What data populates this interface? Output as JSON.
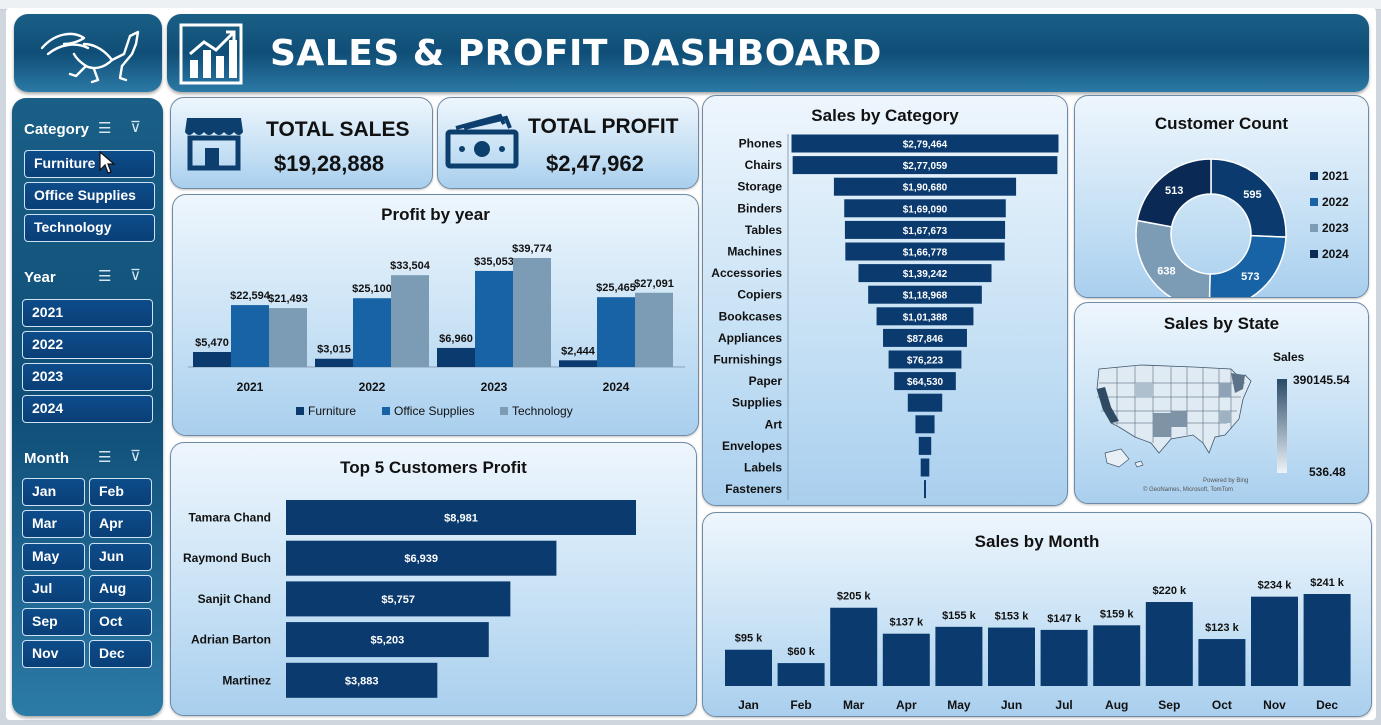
{
  "header": {
    "title": "SALES & PROFIT DASHBOARD",
    "logo_icon": "pegasus-logo",
    "chart_icon": "bar-chart-icon"
  },
  "slicers": {
    "category": {
      "label": "Category",
      "items": [
        "Furniture",
        "Office Supplies",
        "Technology"
      ]
    },
    "year": {
      "label": "Year",
      "items": [
        "2021",
        "2022",
        "2023",
        "2024"
      ]
    },
    "month": {
      "label": "Month",
      "items": [
        "Jan",
        "Feb",
        "Mar",
        "Apr",
        "May",
        "Jun",
        "Jul",
        "Aug",
        "Sep",
        "Oct",
        "Nov",
        "Dec"
      ]
    }
  },
  "kpis": {
    "sales": {
      "label": "TOTAL SALES",
      "value": "$19,28,888",
      "icon": "store-icon"
    },
    "profit": {
      "label": "TOTAL PROFIT",
      "value": "$2,47,962",
      "icon": "cash-icon"
    }
  },
  "colors": {
    "furniture": "#0b3a6e",
    "office": "#1763a5",
    "technology": "#7c9cb6",
    "navy": "#0b3a6e"
  },
  "chart_data": [
    {
      "type": "bar",
      "title": "Profit by year",
      "categories": [
        "2021",
        "2022",
        "2023",
        "2024"
      ],
      "series": [
        {
          "name": "Furniture",
          "values": [
            5470,
            3015,
            6960,
            2444
          ],
          "labels": [
            "$5,470",
            "$3,015",
            "$6,960",
            "$2,444"
          ]
        },
        {
          "name": "Office Supplies",
          "values": [
            22594,
            25100,
            35053,
            25465
          ],
          "labels": [
            "$22,594",
            "$25,100",
            "$35,053",
            "$25,465"
          ]
        },
        {
          "name": "Technology",
          "values": [
            21493,
            33504,
            39774,
            27091
          ],
          "labels": [
            "$21,493",
            "$33,504",
            "$39,774",
            "$27,091"
          ]
        }
      ],
      "legend": "bottom"
    },
    {
      "type": "bar",
      "title": "Sales by Category",
      "categories": [
        "Phones",
        "Chairs",
        "Storage",
        "Binders",
        "Tables",
        "Machines",
        "Accessories",
        "Copiers",
        "Bookcases",
        "Appliances",
        "Furnishings",
        "Paper",
        "Supplies",
        "Art",
        "Envelopes",
        "Labels",
        "Fasteners"
      ],
      "values": [
        279464,
        277059,
        190680,
        169090,
        167673,
        166778,
        139242,
        118968,
        101388,
        87846,
        76223,
        64530,
        36000,
        20000,
        13000,
        9000,
        1500
      ],
      "labels": [
        "$2,79,464",
        "$2,77,059",
        "$1,90,680",
        "$1,69,090",
        "$1,67,673",
        "$1,66,778",
        "$1,39,242",
        "$1,18,968",
        "$1,01,388",
        "$87,846",
        "$76,223",
        "$64,530",
        "",
        "",
        "",
        "",
        ""
      ],
      "orientation": "horizontal-funnel"
    },
    {
      "type": "pie",
      "title": "Customer Count",
      "categories": [
        "2021",
        "2022",
        "2023",
        "2024"
      ],
      "values": [
        595,
        573,
        638,
        513
      ],
      "legend": "right"
    },
    {
      "type": "heatmap",
      "title": "Sales by State",
      "legend_title": "Sales",
      "range": [
        "390145.54",
        "536.48"
      ],
      "credit_1": "Powered by Bing",
      "credit_2": "© GeoNames, Microsoft, TomTom"
    },
    {
      "type": "bar",
      "title": "Top 5 Customers Profit",
      "categories": [
        "Tamara Chand",
        "Raymond Buch",
        "Sanjit Chand",
        "Adrian Barton",
        "Martinez"
      ],
      "values": [
        8981,
        6939,
        5757,
        5203,
        3883
      ],
      "labels": [
        "$8,981",
        "$6,939",
        "$5,757",
        "$5,203",
        "$3,883"
      ],
      "orientation": "horizontal"
    },
    {
      "type": "bar",
      "title": "Sales by Month",
      "categories": [
        "Jan",
        "Feb",
        "Mar",
        "Apr",
        "May",
        "Jun",
        "Jul",
        "Aug",
        "Sep",
        "Oct",
        "Nov",
        "Dec"
      ],
      "values": [
        95,
        60,
        205,
        137,
        155,
        153,
        147,
        159,
        220,
        123,
        234,
        241
      ],
      "labels": [
        "$95 k",
        "$60 k",
        "$205 k",
        "$137 k",
        "$155 k",
        "$153 k",
        "$147 k",
        "$159 k",
        "$220 k",
        "$123 k",
        "$234 k",
        "$241 k"
      ]
    }
  ]
}
